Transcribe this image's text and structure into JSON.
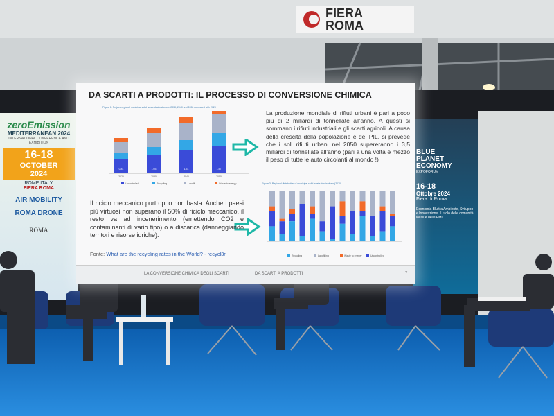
{
  "venue_sign": {
    "line1": "FIERA",
    "line2": "ROMA"
  },
  "slide": {
    "title": "DA SCARTI A PRODOTTI: IL PROCESSO DI CONVERSIONE CHIMICA",
    "figure1": {
      "caption": "Figure 1: Projected global municipal solid waste destinations in 2030, 2040 and 2050 compared with 2020",
      "years": [
        "2020",
        "2030",
        "2040",
        "2050"
      ],
      "bottom_labels": [
        "0.81",
        "1.03",
        "1.31",
        "1.57"
      ],
      "legend": [
        "Uncontrolled",
        "Recycling",
        "Landfill",
        "Waste to energy"
      ]
    },
    "paragraph1": "La produzione mondiale di rifiuti urbani è pari a poco più di 2 miliardi di tonnellate all'anno. A questi si sommano i rifiuti industriali e gli scarti agricoli. A causa della crescita della popolazione e del PIL, si prevede che i soli rifiuti urbani nel 2050 supereranno i 3,5 miliardi di tonnellate all'anno (pari a una volta e mezzo il peso di tutte le auto circolanti al mondo !)",
    "paragraph2": "Il riciclo meccanico purtroppo non basta. Anche i paesi più virtuosi non superano il 50% di riciclo meccanico, il resto va ad incenerimento (emettendo CO2 e contaminanti di vario tipo) o a discarica (danneggiando territori e risorse idriche).",
    "figure2": {
      "caption": "Figure 3: Regional distribution of municipal solid waste destinations (2020)",
      "legend": [
        "Recycling",
        "Landfilling",
        "Waste to energy",
        "Uncontrolled"
      ]
    },
    "source_label": "Fonte:",
    "source_link": "What are the recycling rates in the World? - recycl3r",
    "footer_left": "LA CONVERSIONE CHIMICA DEGLI SCARTI",
    "footer_right": "DA SCARTI A PRODOTTI",
    "page_number": "7"
  },
  "left_banner": {
    "brand": "zeroEmission",
    "edition": "MEDITERRANEAN 2024",
    "tagline": "INTERNATIONAL CONFERENCE AND EXHIBITION",
    "dates": "16-18",
    "month": "OCTOBER",
    "year": "2024",
    "city": "ROME",
    "country": "ITALY",
    "venue": "FIERA ROMA",
    "event2": "AIR MOBILITY",
    "event3": "ROMA DRONE",
    "event4": "ROMA"
  },
  "right_banner": {
    "line1": "BLUE",
    "line2": "PLANET",
    "line3": "ECONOMY",
    "sub": "EXPOFORUM",
    "dates": "16-18",
    "month_year": "Ottobre 2024",
    "venue": "Fiera di Roma",
    "description": "Economia Blu tra Ambiente, Sviluppo e Innovazione. Il ruolo delle comunità locali e delle PMI."
  }
}
